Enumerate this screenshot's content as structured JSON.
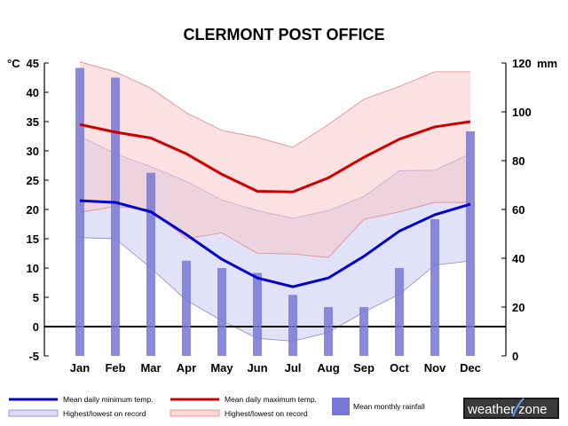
{
  "chart_data": {
    "type": "line",
    "title": "CLERMONT POST OFFICE",
    "categories": [
      "Jan",
      "Feb",
      "Mar",
      "Apr",
      "May",
      "Jun",
      "Jul",
      "Aug",
      "Sep",
      "Oct",
      "Nov",
      "Dec"
    ],
    "y_left": {
      "unit_label": "°C",
      "range": [
        -5,
        45
      ],
      "ticks": [
        45,
        40,
        35,
        30,
        25,
        20,
        15,
        10,
        5,
        0,
        -5
      ]
    },
    "y_right": {
      "unit_label": "mm",
      "range": [
        0,
        120
      ],
      "ticks": [
        120,
        100,
        80,
        60,
        40,
        20,
        0
      ]
    },
    "series": [
      {
        "name": "Mean daily minimum temp.",
        "kind": "line",
        "axis": "left",
        "color": "#0000cc",
        "values": [
          21.5,
          21.2,
          19.6,
          15.7,
          11.5,
          8.3,
          6.8,
          8.3,
          12.0,
          16.3,
          19.1,
          20.9
        ]
      },
      {
        "name": "Mean daily maximum temp.",
        "kind": "line",
        "axis": "left",
        "color": "#cc0000",
        "values": [
          34.5,
          33.2,
          32.2,
          29.5,
          26.0,
          23.1,
          23.0,
          25.4,
          28.9,
          32.0,
          34.1,
          35.0
        ]
      },
      {
        "name": "Highest/lowest on record",
        "kind": "band",
        "axis": "left",
        "group": "min",
        "color": "#6666cc",
        "upper": [
          32.5,
          29.5,
          27.3,
          24.8,
          21.6,
          19.8,
          18.5,
          19.8,
          22.2,
          26.6,
          26.7,
          29.5
        ],
        "lower": [
          15.2,
          15.0,
          10.0,
          4.5,
          1.0,
          -2.0,
          -2.5,
          -1.0,
          2.5,
          5.5,
          10.5,
          11.2
        ]
      },
      {
        "name": "Highest/lowest on record",
        "kind": "band",
        "axis": "left",
        "group": "max",
        "color": "#e87a7a",
        "upper": [
          45.2,
          43.5,
          40.7,
          36.5,
          33.5,
          32.3,
          30.6,
          34.5,
          38.8,
          41.0,
          43.5,
          43.5
        ],
        "lower": [
          19.5,
          20.5,
          20.0,
          15.0,
          16.0,
          12.5,
          12.4,
          11.8,
          18.3,
          19.6,
          21.2,
          21.2
        ]
      },
      {
        "name": "Mean monthly rainfall",
        "kind": "bar",
        "axis": "right",
        "color": "#7777d6",
        "values": [
          118,
          114,
          75,
          39,
          36,
          34,
          25,
          20,
          20,
          36,
          56,
          92
        ]
      }
    ],
    "legend": [
      {
        "label": "Mean daily minimum temp.",
        "style": "line",
        "color": "#0000cc"
      },
      {
        "label": "Mean daily maximum temp.",
        "style": "line",
        "color": "#cc0000"
      },
      {
        "label": "Highest/lowest on record",
        "style": "band",
        "fill": "#dcdcf6",
        "stroke": "#8888cc"
      },
      {
        "label": "Highest/lowest on record",
        "style": "band",
        "fill": "#fad9d9",
        "stroke": "#e08888"
      },
      {
        "label": "Mean monthly rainfall",
        "style": "bar",
        "color": "#7777d6"
      }
    ],
    "grid": false,
    "legend_placement": "bottom"
  },
  "logo": {
    "text_a": "weather",
    "text_b": "zone"
  }
}
